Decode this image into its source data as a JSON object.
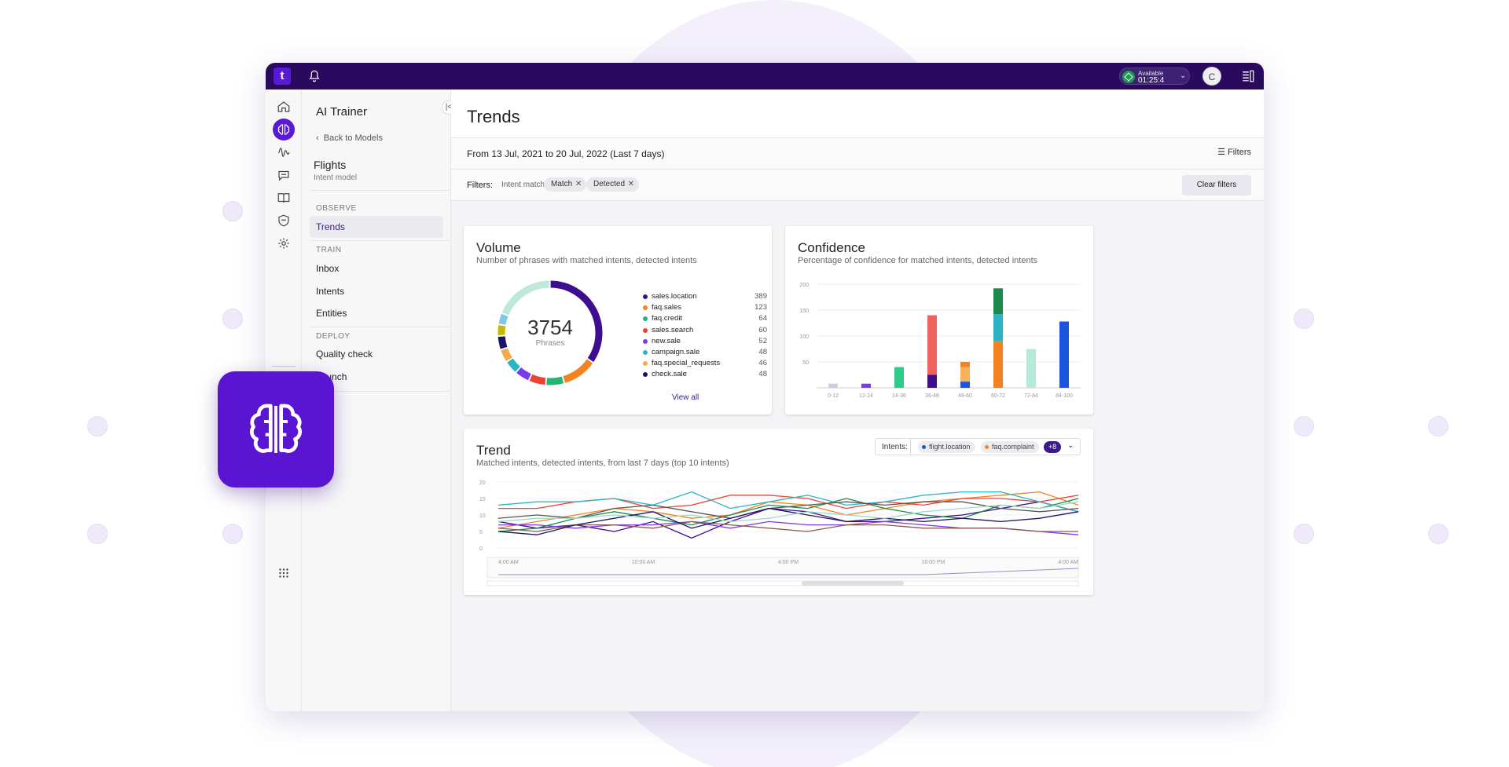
{
  "topbar": {
    "logo_text": "t",
    "status_label": "Available",
    "status_time": "01:25:4",
    "avatar_initial": "C",
    "icons": [
      "bell-icon",
      "apps-panel-icon"
    ]
  },
  "rail": {
    "icons": [
      "home-icon",
      "ai-trainer-icon",
      "analytics-icon",
      "conversations-icon",
      "knowledge-book-icon",
      "shield-icon",
      "settings-icon",
      "apps-grid-icon"
    ]
  },
  "nav": {
    "title": "AI Trainer",
    "back_label": "Back to Models",
    "model_name": "Flights",
    "model_type": "Intent model",
    "sections": {
      "observe": "OBSERVE",
      "train": "TRAIN",
      "deploy": "DEPLOY"
    },
    "items": {
      "trends": "Trends",
      "inbox": "Inbox",
      "intents": "Intents",
      "entities": "Entities",
      "quality_check": "Quality check",
      "launch": "Launch"
    }
  },
  "main": {
    "title": "Trends",
    "date_range": "From 13 Jul, 2021 to 20 Jul, 2022 (Last 7 days)",
    "filters_button": "Filters",
    "filters_label": "Filters:",
    "filter_field": "Intent match",
    "filter_chips": [
      "Match",
      "Detected"
    ],
    "clear_filters": "Clear filters"
  },
  "volume": {
    "title": "Volume",
    "subtitle": "Number of phrases with matched intents, detected intents",
    "total": "3754",
    "total_label": "Phrases",
    "view_all": "View all"
  },
  "confidence": {
    "title": "Confidence",
    "subtitle": "Percentage of confidence for matched intents, detected intents"
  },
  "trend": {
    "title": "Trend",
    "subtitle": "Matched intents, detected intents, from last 7 days (top 10 intents)",
    "intents_label": "Intents:",
    "intent_chips": [
      {
        "name": "flight.location",
        "color": "#1a56db"
      },
      {
        "name": "faq.complaint",
        "color": "#f58220"
      }
    ],
    "more_badge": "+8"
  },
  "chart_data": [
    {
      "type": "pie",
      "title": "Volume",
      "categories": [
        "sales.location",
        "faq.sales",
        "faq.credit",
        "sales.search",
        "new.sale",
        "campaign.sale",
        "faq.special_requests",
        "check.sale"
      ],
      "values": [
        389,
        123,
        64,
        60,
        52,
        48,
        46,
        48
      ],
      "colors": [
        "#3d0f8f",
        "#f58220",
        "#22b573",
        "#ef4136",
        "#7c3aed",
        "#2bb5c4",
        "#f5a94a",
        "#1b1464"
      ],
      "extra_segments": [
        {
          "color": "#c8b900",
          "value": 40
        },
        {
          "color": "#7fc8e8",
          "value": 40
        },
        {
          "color": "#bfe8dd",
          "value": 210
        }
      ]
    },
    {
      "type": "bar",
      "title": "Confidence",
      "categories": [
        "0-12",
        "12-24",
        "24-36",
        "36-48",
        "48-60",
        "60-72",
        "72-84",
        "84-100"
      ],
      "ylim": [
        0,
        200
      ],
      "yticks": [
        50,
        100,
        150,
        200
      ],
      "stacks": [
        [
          {
            "value": 8,
            "color": "#d2cbe6"
          }
        ],
        [
          {
            "value": 8,
            "color": "#7c3aed"
          }
        ],
        [
          {
            "value": 40,
            "color": "#2ecc8a"
          }
        ],
        [
          {
            "value": 25,
            "color": "#3d0f8f"
          },
          {
            "value": 115,
            "color": "#f0625e"
          }
        ],
        [
          {
            "value": 12,
            "color": "#1a56db"
          },
          {
            "value": 28,
            "color": "#f5b25a"
          },
          {
            "value": 10,
            "color": "#f58220"
          }
        ],
        [
          {
            "value": 90,
            "color": "#f58220"
          },
          {
            "value": 52,
            "color": "#2bb5c4"
          },
          {
            "value": 50,
            "color": "#1b8a4a"
          }
        ],
        [
          {
            "value": 75,
            "color": "#b5ead8"
          }
        ],
        [
          {
            "value": 128,
            "color": "#1a56db"
          }
        ]
      ]
    },
    {
      "type": "line",
      "title": "Trend",
      "ylim": [
        0,
        20
      ],
      "yticks": [
        0,
        5,
        10,
        15,
        20
      ],
      "xticks": [
        "4:00 AM",
        "10:00 AM",
        "4:00 PM",
        "10:00 PM",
        "4:00 AM"
      ],
      "series": [
        {
          "color": "#3d0f8f",
          "values": [
            8,
            6,
            7,
            5,
            8,
            3,
            8,
            12,
            11,
            8,
            8,
            9,
            10,
            12,
            14,
            11
          ]
        },
        {
          "color": "#f58220",
          "values": [
            6,
            8,
            10,
            12,
            11,
            9,
            10,
            14,
            13,
            10,
            12,
            14,
            15,
            16,
            17,
            13
          ]
        },
        {
          "color": "#1a8a4a",
          "values": [
            5,
            6,
            9,
            11,
            9,
            7,
            10,
            13,
            12,
            15,
            12,
            10,
            9,
            13,
            12,
            15
          ]
        },
        {
          "color": "#ef4136",
          "values": [
            12,
            12,
            14,
            15,
            12,
            13,
            16,
            16,
            15,
            12,
            14,
            13,
            15,
            15,
            14,
            16
          ]
        },
        {
          "color": "#2bb5c4",
          "values": [
            13,
            14,
            14,
            15,
            13,
            17,
            12,
            14,
            16,
            13,
            14,
            16,
            17,
            17,
            14,
            11
          ]
        },
        {
          "color": "#7c3aed",
          "values": [
            7,
            7,
            6,
            7,
            7,
            8,
            6,
            8,
            7,
            7,
            8,
            7,
            6,
            6,
            5,
            4
          ]
        },
        {
          "color": "#8b5a4a",
          "values": [
            6,
            5,
            7,
            7,
            6,
            8,
            7,
            6,
            5,
            7,
            7,
            6,
            6,
            6,
            5,
            5
          ]
        },
        {
          "color": "#555555",
          "values": [
            9,
            10,
            9,
            12,
            13,
            11,
            9,
            12,
            13,
            14,
            13,
            14,
            14,
            12,
            11,
            12
          ]
        },
        {
          "color": "#1b1464",
          "values": [
            5,
            4,
            7,
            9,
            11,
            6,
            9,
            12,
            10,
            8,
            9,
            8,
            9,
            8,
            9,
            11
          ]
        },
        {
          "color": "#a0d9c8",
          "values": [
            8,
            9,
            9,
            10,
            9,
            10,
            8,
            9,
            11,
            10,
            9,
            11,
            12,
            13,
            12,
            14
          ]
        }
      ]
    }
  ]
}
